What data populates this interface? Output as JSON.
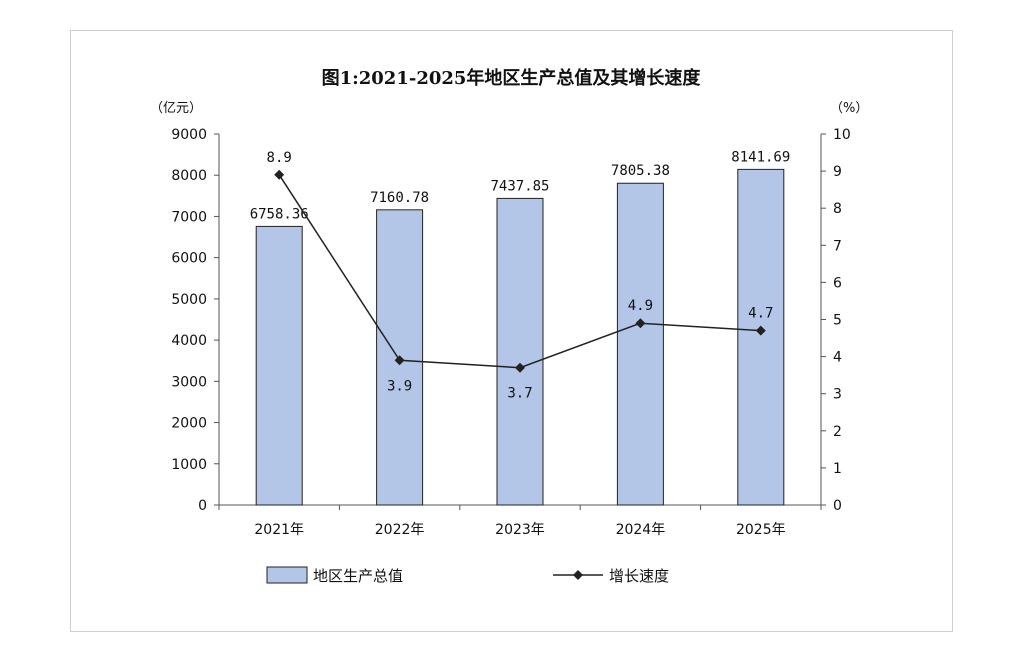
{
  "chart_data": {
    "type": "bar",
    "title": "图1:2021-2025年地区生产总值及其增长速度",
    "categories": [
      "2021年",
      "2022年",
      "2023年",
      "2024年",
      "2025年"
    ],
    "left_axis": {
      "unit_label": "（亿元）",
      "ylim": [
        0,
        9000
      ],
      "ticks": [
        "0",
        "1000",
        "2000",
        "3000",
        "4000",
        "5000",
        "6000",
        "7000",
        "8000",
        "9000"
      ],
      "tick_values": [
        0,
        1000,
        2000,
        3000,
        4000,
        5000,
        6000,
        7000,
        8000,
        9000
      ]
    },
    "right_axis": {
      "unit_label": "（%）",
      "ylim": [
        0,
        10
      ],
      "ticks": [
        "0",
        "1",
        "2",
        "3",
        "4",
        "5",
        "6",
        "7",
        "8",
        "9",
        "10"
      ],
      "tick_values": [
        0,
        1,
        2,
        3,
        4,
        5,
        6,
        7,
        8,
        9,
        10
      ]
    },
    "series": [
      {
        "name": "地区生产总值",
        "type": "bar",
        "axis": "left",
        "values": [
          6758.36,
          7160.78,
          7437.85,
          7805.38,
          8141.69
        ],
        "labels": [
          "6758.36",
          "7160.78",
          "7437.85",
          "7805.38",
          "8141.69"
        ],
        "color": "#b4c6e7"
      },
      {
        "name": "增长速度",
        "type": "line",
        "axis": "right",
        "values": [
          8.9,
          3.9,
          3.7,
          4.9,
          4.7
        ],
        "labels": [
          "8.9",
          "3.9",
          "3.7",
          "4.9",
          "4.7"
        ],
        "label_position": [
          "above",
          "below",
          "below",
          "above",
          "above"
        ],
        "color": "#222222"
      }
    ],
    "legend": {
      "placement": "bottom",
      "items": [
        "地区生产总值",
        "增长速度"
      ]
    },
    "grid": false
  }
}
